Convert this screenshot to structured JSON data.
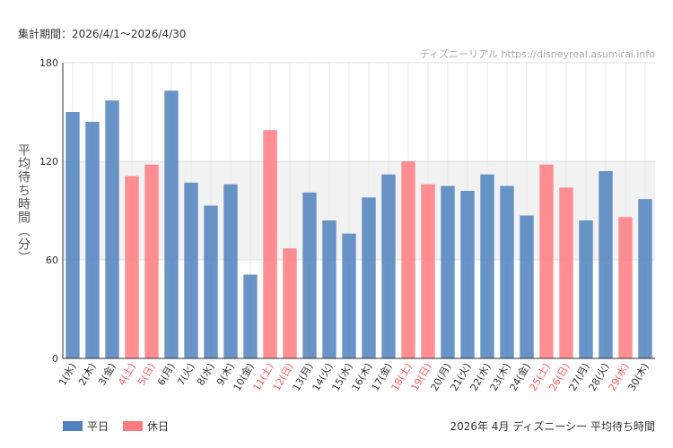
{
  "header": {
    "period": "集計期間：2026/4/1〜2026/4/30",
    "watermark": "ディズニーリアル https://disneyreal.asumirai.info"
  },
  "footer": {
    "caption": "2026年 4月 ディズニーシー 平均待ち時間"
  },
  "colors": {
    "weekday": "#4f81bd",
    "holiday": "#ff7b80",
    "holiday_label": "#ff5a5f",
    "band": "#f2f2f2"
  },
  "chart_data": {
    "type": "bar",
    "ylabel": "平均待ち時間（分）",
    "ylim": [
      0,
      180
    ],
    "yticks": [
      0,
      60,
      120,
      180
    ],
    "shaded_band": [
      60,
      120
    ],
    "legend": [
      {
        "name": "平日",
        "color_key": "weekday"
      },
      {
        "name": "休日",
        "color_key": "holiday"
      }
    ],
    "categories": [
      "1(水)",
      "2(木)",
      "3(金)",
      "4(土)",
      "5(日)",
      "6(月)",
      "7(火)",
      "8(水)",
      "9(木)",
      "10(金)",
      "11(土)",
      "12(日)",
      "13(月)",
      "14(火)",
      "15(水)",
      "16(木)",
      "17(金)",
      "18(土)",
      "19(日)",
      "20(月)",
      "21(火)",
      "22(水)",
      "23(木)",
      "24(金)",
      "25(土)",
      "26(日)",
      "27(月)",
      "28(火)",
      "29(水)",
      "30(木)"
    ],
    "values": [
      150,
      144,
      157,
      111,
      118,
      163,
      107,
      93,
      106,
      51,
      139,
      67,
      101,
      84,
      76,
      98,
      112,
      120,
      106,
      105,
      102,
      112,
      105,
      87,
      118,
      104,
      84,
      114,
      86,
      97
    ],
    "day_type": [
      "平日",
      "平日",
      "平日",
      "休日",
      "休日",
      "平日",
      "平日",
      "平日",
      "平日",
      "平日",
      "休日",
      "休日",
      "平日",
      "平日",
      "平日",
      "平日",
      "平日",
      "休日",
      "休日",
      "平日",
      "平日",
      "平日",
      "平日",
      "平日",
      "休日",
      "休日",
      "平日",
      "平日",
      "休日",
      "平日"
    ]
  }
}
